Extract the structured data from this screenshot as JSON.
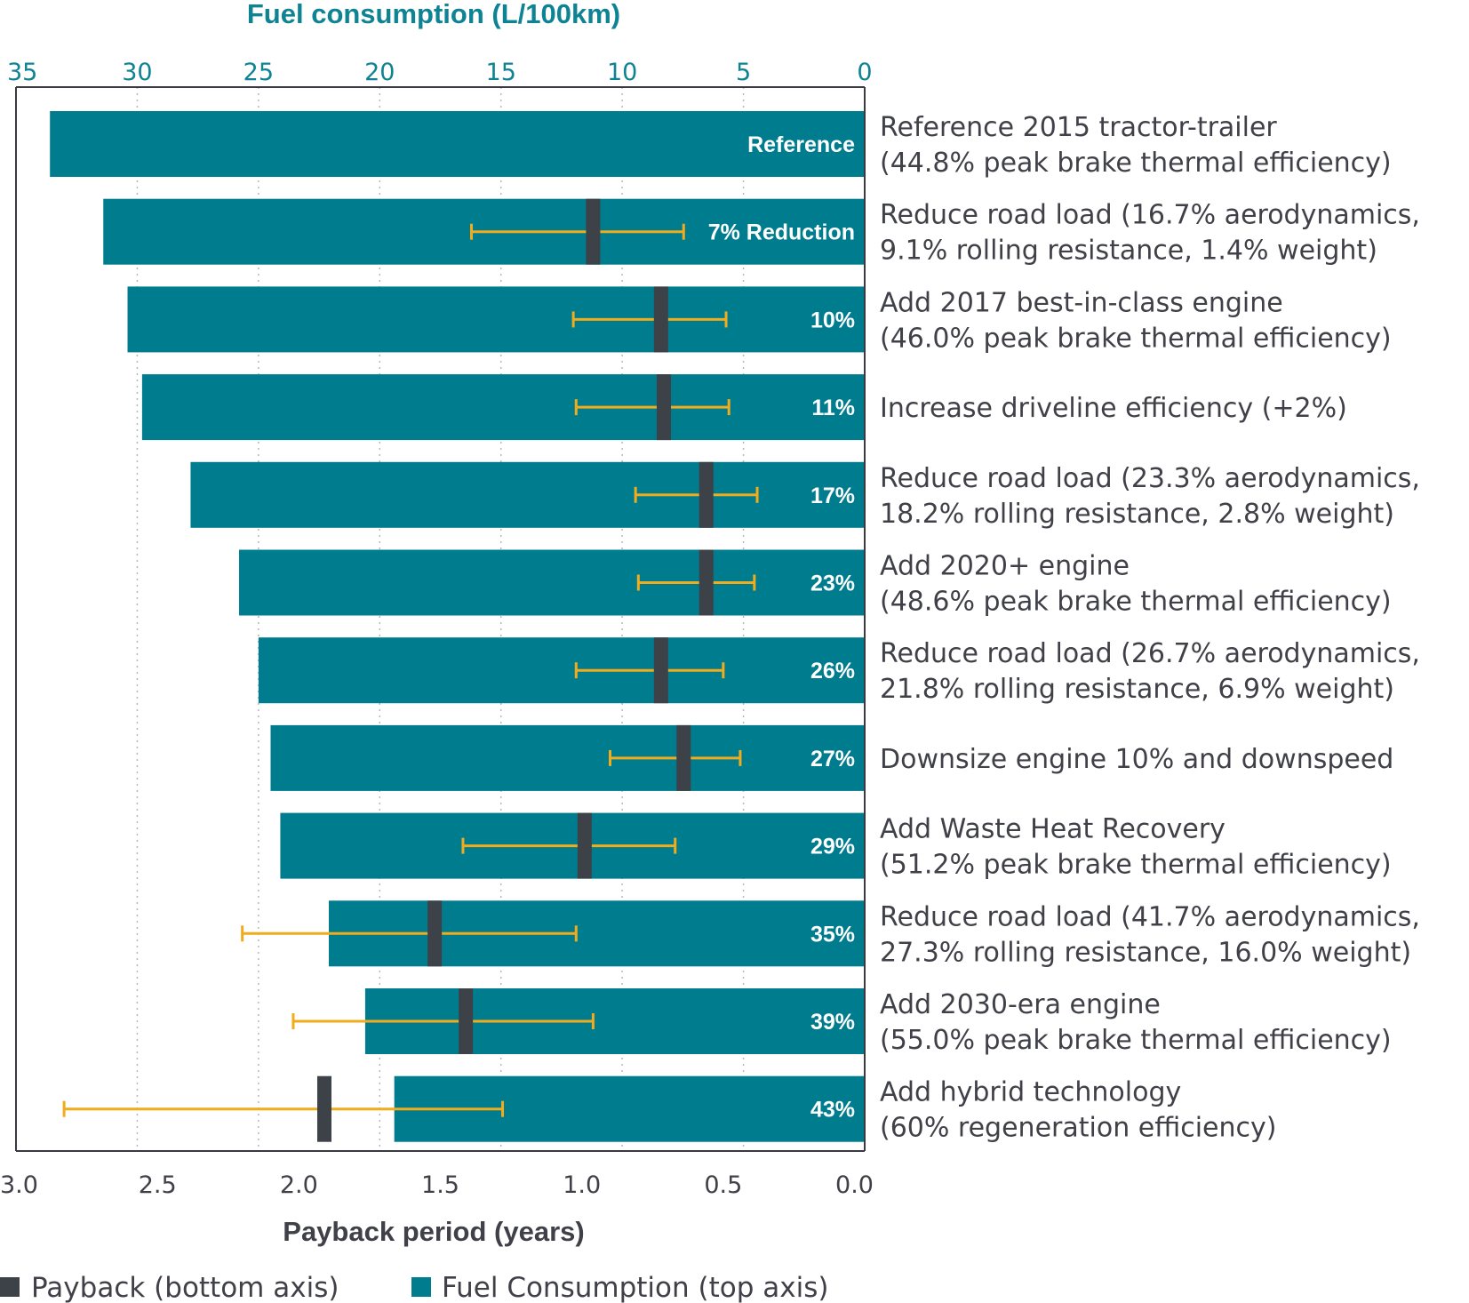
{
  "chart_data": {
    "type": "bar",
    "orientation": "horizontal",
    "top_axis": {
      "title": "Fuel consumption (L/100km)",
      "range": [
        35,
        0
      ],
      "ticks": [
        "35",
        "30",
        "25",
        "20",
        "15",
        "10",
        "5",
        "0"
      ]
    },
    "bottom_axis": {
      "title": "Payback period (years)",
      "range": [
        3.0,
        0.0
      ],
      "ticks": [
        "3.0",
        "2.5",
        "2.0",
        "1.5",
        "1.0",
        "0.5",
        "0.0"
      ]
    },
    "grid": "vertical dotted",
    "legend_position": "bottom-left",
    "legend": [
      {
        "label": "Payback (bottom axis)",
        "color": "#3d4249"
      },
      {
        "label": "Fuel Consumption (top axis)",
        "color": "#007c8f"
      }
    ],
    "colors": {
      "fuel": "#007c8f",
      "payback": "#3d4249",
      "error": "#f0ac1c",
      "accent": "#0e8394"
    },
    "rows": [
      {
        "label_lines": [
          "Reference 2015 tractor-trailer",
          "(44.8% peak brake thermal efficiency)"
        ],
        "bar_label": "Reference",
        "fuel": 33.6,
        "payback": null,
        "payback_low": null,
        "payback_high": null
      },
      {
        "label_lines": [
          "Reduce road load (16.7% aerodynamics,",
          "9.1% rolling resistance, 1.4% weight)"
        ],
        "bar_label": "7% Reduction",
        "fuel": 31.4,
        "payback": 0.96,
        "payback_low": 0.64,
        "payback_high": 1.39
      },
      {
        "label_lines": [
          "Add 2017 best-in-class engine",
          "(46.0% peak brake thermal efficiency)"
        ],
        "bar_label": "10%",
        "fuel": 30.4,
        "payback": 0.72,
        "payback_low": 0.49,
        "payback_high": 1.03
      },
      {
        "label_lines": [
          "Increase driveline efficiency (+2%)"
        ],
        "bar_label": "11%",
        "fuel": 29.8,
        "payback": 0.71,
        "payback_low": 0.48,
        "payback_high": 1.02
      },
      {
        "label_lines": [
          "Reduce road load (23.3% aerodynamics,",
          "18.2% rolling resistance, 2.8% weight)"
        ],
        "bar_label": "17%",
        "fuel": 27.8,
        "payback": 0.56,
        "payback_low": 0.38,
        "payback_high": 0.81
      },
      {
        "label_lines": [
          "Add 2020+ engine",
          "(48.6% peak brake thermal efficiency)"
        ],
        "bar_label": "23%",
        "fuel": 25.8,
        "payback": 0.56,
        "payback_low": 0.39,
        "payback_high": 0.8
      },
      {
        "label_lines": [
          "Reduce road load (26.7% aerodynamics,",
          "21.8% rolling resistance, 6.9% weight)"
        ],
        "bar_label": "26%",
        "fuel": 25.0,
        "payback": 0.72,
        "payback_low": 0.5,
        "payback_high": 1.02
      },
      {
        "label_lines": [
          "Downsize engine 10% and downspeed"
        ],
        "bar_label": "27%",
        "fuel": 24.5,
        "payback": 0.64,
        "payback_low": 0.44,
        "payback_high": 0.9
      },
      {
        "label_lines": [
          "Add Waste Heat Recovery",
          "(51.2% peak brake thermal efficiency)"
        ],
        "bar_label": "29%",
        "fuel": 24.1,
        "payback": 0.99,
        "payback_low": 0.67,
        "payback_high": 1.42
      },
      {
        "label_lines": [
          "Reduce road load (41.7% aerodynamics,",
          "27.3% rolling resistance, 16.0% weight)"
        ],
        "bar_label": "35%",
        "fuel": 22.1,
        "payback": 1.52,
        "payback_low": 1.02,
        "payback_high": 2.2
      },
      {
        "label_lines": [
          "Add 2030-era engine",
          "(55.0% peak brake thermal efficiency)"
        ],
        "bar_label": "39%",
        "fuel": 20.6,
        "payback": 1.41,
        "payback_low": 0.96,
        "payback_high": 2.02
      },
      {
        "label_lines": [
          "Add hybrid technology",
          "(60% regeneration efficiency)"
        ],
        "bar_label": "43%",
        "fuel": 19.4,
        "payback": 1.91,
        "payback_low": 1.28,
        "payback_high": 2.83
      }
    ]
  }
}
